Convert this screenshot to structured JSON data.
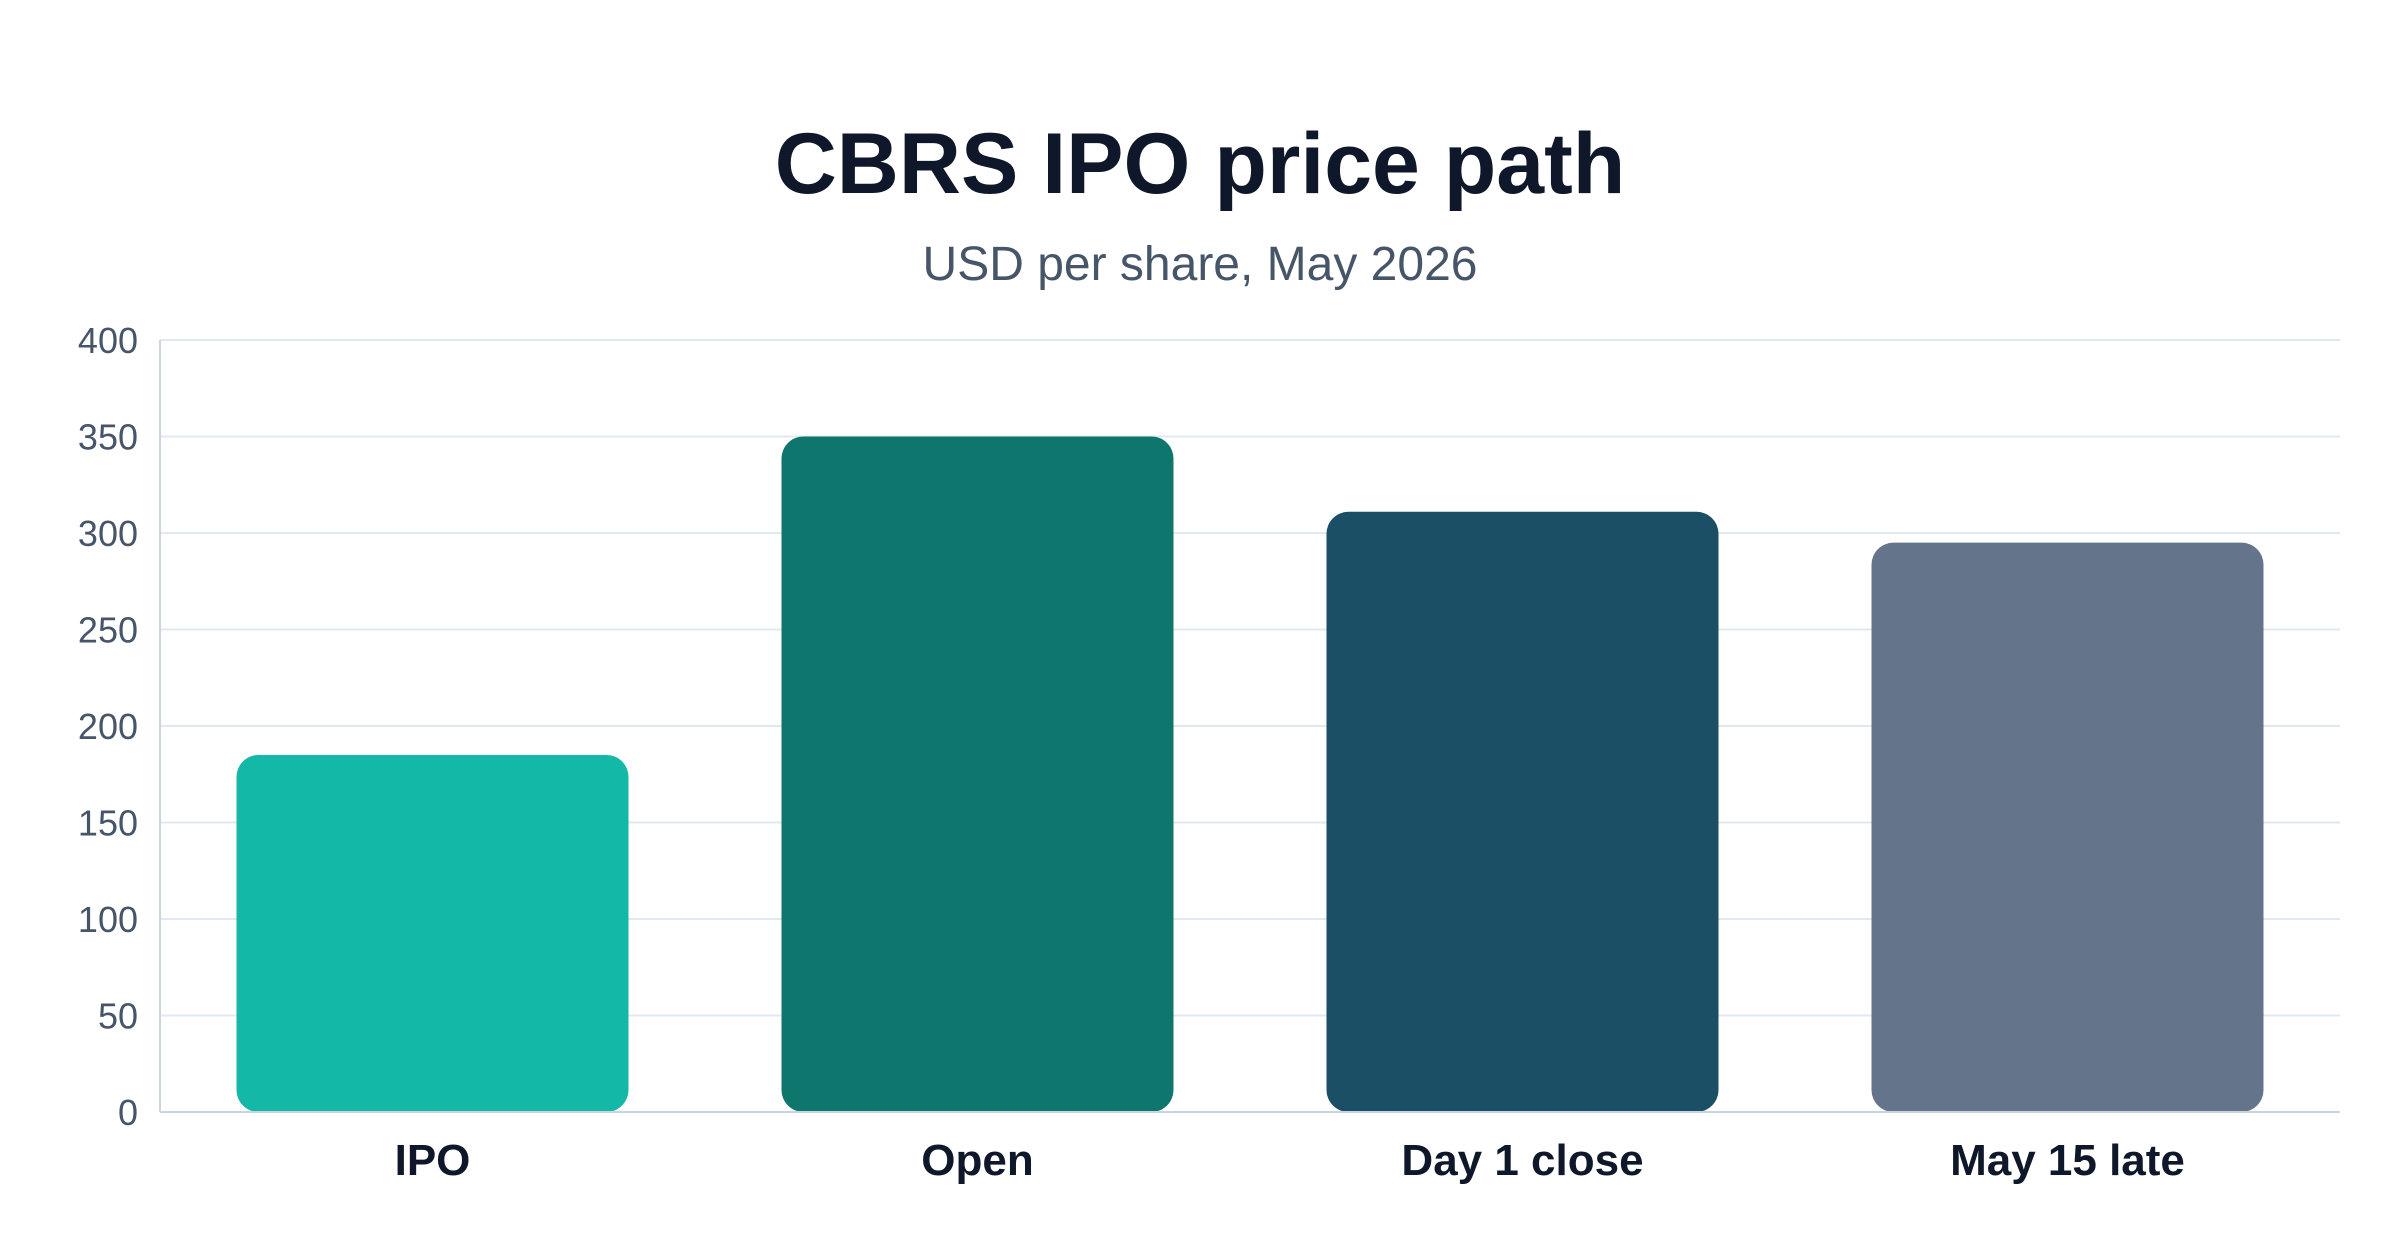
{
  "chart_data": {
    "type": "bar",
    "title": "CBRS IPO price path",
    "subtitle": "USD per share, May 2026",
    "xlabel": "",
    "ylabel": "",
    "categories": [
      "IPO",
      "Open",
      "Day 1 close",
      "May 15 late"
    ],
    "values": [
      185,
      350,
      311,
      295
    ],
    "colors": [
      "#14b8a6",
      "#0f766e",
      "#1a4f66",
      "#64748b"
    ],
    "ylim": [
      0,
      400
    ],
    "yticks": [
      0,
      50,
      100,
      150,
      200,
      250,
      300,
      350,
      400
    ],
    "grid": true,
    "legend": "none"
  }
}
